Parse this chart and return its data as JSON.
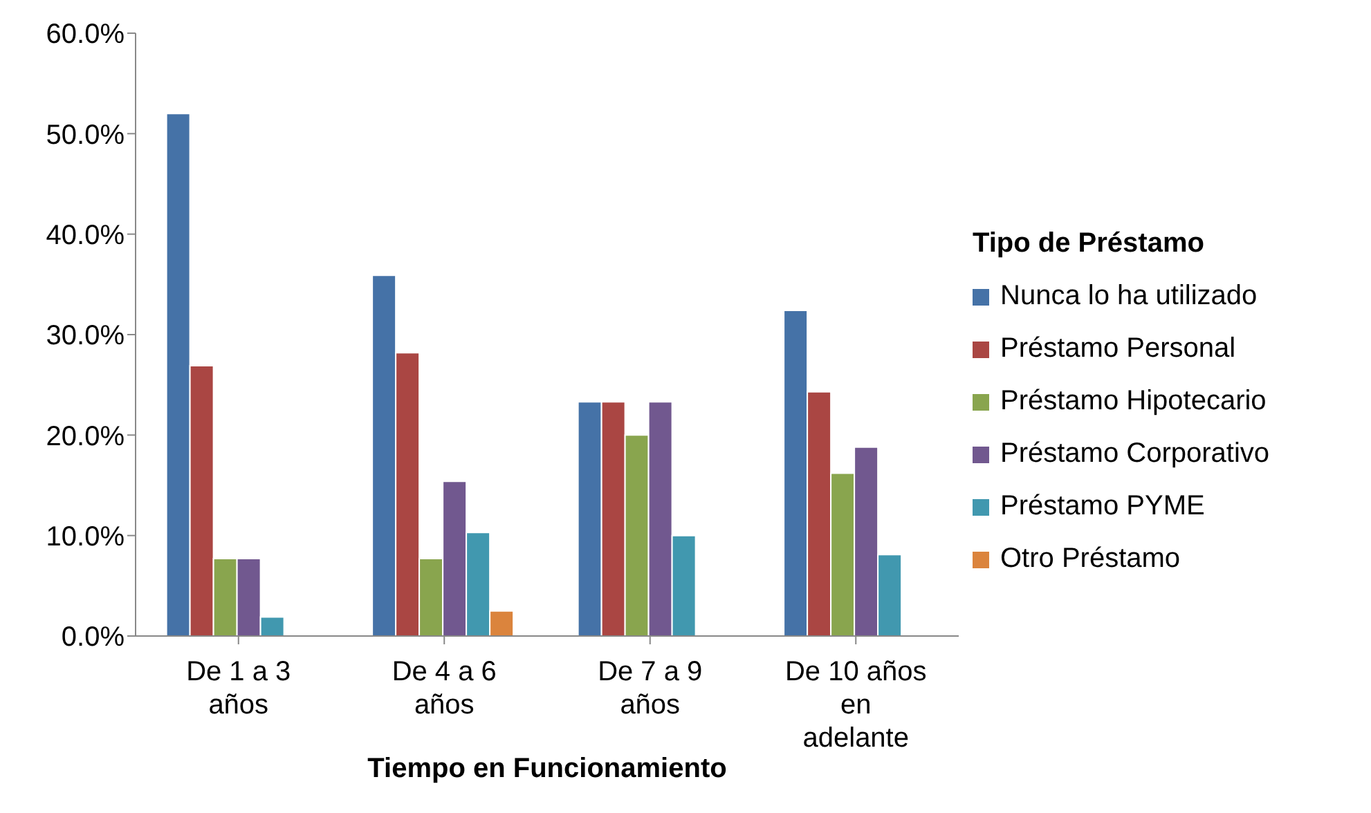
{
  "chart_data": {
    "type": "bar",
    "xlabel": "Tiempo en Funcionamiento",
    "legend_title": "Tipo de Préstamo",
    "categories": [
      "De 1 a 3 años",
      "De 4 a 6 años",
      "De 7 a 9 años",
      "De 10 años en adelante"
    ],
    "series": [
      {
        "name": "Nunca lo ha utilizado",
        "color": "#4572a7",
        "values": [
          52.0,
          35.9,
          23.3,
          32.4
        ]
      },
      {
        "name": "Préstamo Personal",
        "color": "#aa4643",
        "values": [
          26.9,
          28.2,
          23.3,
          24.3
        ]
      },
      {
        "name": "Préstamo Hipotecario",
        "color": "#89a54e",
        "values": [
          7.7,
          7.7,
          20.0,
          16.2
        ]
      },
      {
        "name": "Préstamo Corporativo",
        "color": "#71588f",
        "values": [
          7.7,
          15.4,
          23.3,
          18.8
        ]
      },
      {
        "name": "Préstamo PYME",
        "color": "#4198af",
        "values": [
          1.9,
          10.3,
          10.0,
          8.1
        ]
      },
      {
        "name": "Otro Préstamo",
        "color": "#db843d",
        "values": [
          null,
          2.5,
          null,
          null
        ]
      }
    ],
    "ylim": [
      0,
      60
    ],
    "yticks": [
      {
        "value": 0,
        "label": "0.0%"
      },
      {
        "value": 10,
        "label": "10.0%"
      },
      {
        "value": 20,
        "label": "20.0%"
      },
      {
        "value": 30,
        "label": "30.0%"
      },
      {
        "value": 40,
        "label": "40.0%"
      },
      {
        "value": 50,
        "label": "50.0%"
      },
      {
        "value": 60,
        "label": "60.0%"
      }
    ],
    "grid": false,
    "legend": "right"
  }
}
